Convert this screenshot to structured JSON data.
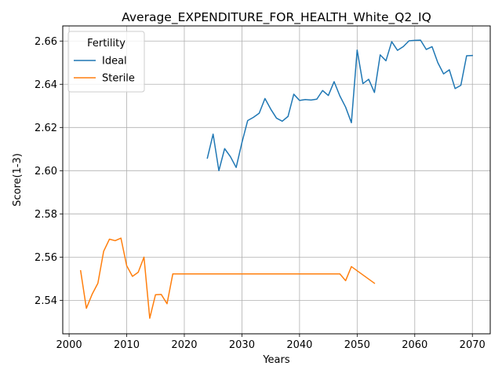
{
  "chart_data": {
    "type": "line",
    "title": "Average_EXPENDITURE_FOR_HEALTH_White_Q2_IQ",
    "xlabel": "Years",
    "ylabel": "Score(1-3)",
    "xlim": [
      1998.9,
      2073.1
    ],
    "ylim": [
      2.5245,
      2.667
    ],
    "xticks": [
      2000,
      2010,
      2020,
      2030,
      2040,
      2050,
      2060,
      2070
    ],
    "xtick_labels": [
      "2000",
      "2010",
      "2020",
      "2030",
      "2040",
      "2050",
      "2060",
      "2070"
    ],
    "yticks": [
      2.54,
      2.56,
      2.58,
      2.6,
      2.62,
      2.64,
      2.66
    ],
    "ytick_labels": [
      "2.54",
      "2.56",
      "2.58",
      "2.60",
      "2.62",
      "2.64",
      "2.66"
    ],
    "grid": true,
    "legend": {
      "title": "Fertility",
      "placement": "top-left"
    },
    "series": [
      {
        "name": "Ideal",
        "color": "#1f77b4",
        "x": [
          2024,
          2025,
          2026,
          2027,
          2028,
          2029,
          2030,
          2031,
          2032,
          2033,
          2034,
          2035,
          2036,
          2037,
          2038,
          2039,
          2040,
          2041,
          2042,
          2043,
          2044,
          2045,
          2046,
          2047,
          2048,
          2049,
          2050,
          2051,
          2052,
          2053,
          2054,
          2055,
          2056,
          2057,
          2058,
          2059,
          2060,
          2061,
          2062,
          2063,
          2064,
          2065,
          2066,
          2067,
          2068,
          2069,
          2070
        ],
        "y": [
          2.6058,
          2.6169,
          2.6,
          2.6102,
          2.6065,
          2.6015,
          2.613,
          2.6232,
          2.6247,
          2.6266,
          2.6334,
          2.6285,
          2.6243,
          2.6229,
          2.6251,
          2.6354,
          2.6325,
          2.6329,
          2.6327,
          2.6331,
          2.6371,
          2.6348,
          2.6412,
          2.6346,
          2.6294,
          2.6222,
          2.6558,
          2.6403,
          2.6423,
          2.6362,
          2.6536,
          2.6509,
          2.6597,
          2.6557,
          2.6574,
          2.6601,
          2.6603,
          2.6604,
          2.6561,
          2.6574,
          2.65,
          2.6448,
          2.6467,
          2.638,
          2.6395,
          2.6532,
          2.6533
        ]
      },
      {
        "name": "Sterile",
        "color": "#ff7f0e",
        "x": [
          2002,
          2003,
          2004,
          2005,
          2006,
          2007,
          2008,
          2009,
          2010,
          2011,
          2012,
          2013,
          2014,
          2015,
          2016,
          2017,
          2018,
          2019,
          2020,
          2025,
          2030,
          2035,
          2040,
          2045,
          2046,
          2047,
          2048,
          2049,
          2053
        ],
        "y": [
          2.5537,
          2.5363,
          2.5428,
          2.5479,
          2.5627,
          2.5683,
          2.5676,
          2.5688,
          2.556,
          2.5511,
          2.553,
          2.56,
          2.5317,
          2.5426,
          2.5427,
          2.5384,
          2.5522,
          2.5522,
          2.5522,
          2.5522,
          2.5522,
          2.5522,
          2.5522,
          2.5522,
          2.5522,
          2.5522,
          2.5491,
          2.5556,
          2.5479
        ]
      }
    ]
  }
}
